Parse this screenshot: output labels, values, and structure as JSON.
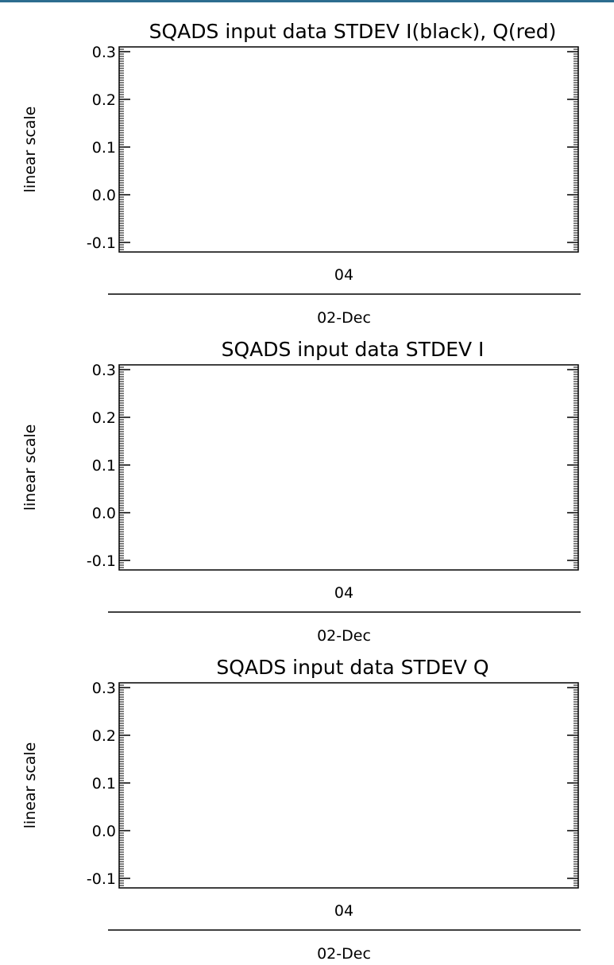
{
  "window": {
    "border_color": "#2d6d8f"
  },
  "chart_data": [
    {
      "type": "line",
      "title": "SQADS input data STDEV I(black), Q(red)",
      "ylabel": "linear scale",
      "ylim": [
        -0.12,
        0.31
      ],
      "yticks": [
        "0.3",
        "0.2",
        "0.1",
        "0.0",
        "-0.1"
      ],
      "ytick_values": [
        0.3,
        0.2,
        0.1,
        0.0,
        -0.1
      ],
      "xtick_label": "04",
      "xlabel": "02-Dec",
      "series": [
        {
          "name": "I",
          "color": "#000000",
          "x": [],
          "y": []
        },
        {
          "name": "Q",
          "color": "#ff0000",
          "x": [],
          "y": []
        }
      ],
      "grid": false
    },
    {
      "type": "line",
      "title": "SQADS input data STDEV I",
      "ylabel": "linear scale",
      "ylim": [
        -0.12,
        0.31
      ],
      "yticks": [
        "0.3",
        "0.2",
        "0.1",
        "0.0",
        "-0.1"
      ],
      "ytick_values": [
        0.3,
        0.2,
        0.1,
        0.0,
        -0.1
      ],
      "xtick_label": "04",
      "xlabel": "02-Dec",
      "series": [
        {
          "name": "I",
          "color": "#000000",
          "x": [],
          "y": []
        }
      ],
      "grid": false
    },
    {
      "type": "line",
      "title": "SQADS input data STDEV Q",
      "ylabel": "linear scale",
      "ylim": [
        -0.12,
        0.31
      ],
      "yticks": [
        "0.3",
        "0.2",
        "0.1",
        "0.0",
        "-0.1"
      ],
      "ytick_values": [
        0.3,
        0.2,
        0.1,
        0.0,
        -0.1
      ],
      "xtick_label": "04",
      "xlabel": "02-Dec",
      "series": [
        {
          "name": "Q",
          "color": "#ff0000",
          "x": [],
          "y": []
        }
      ],
      "grid": false
    }
  ]
}
